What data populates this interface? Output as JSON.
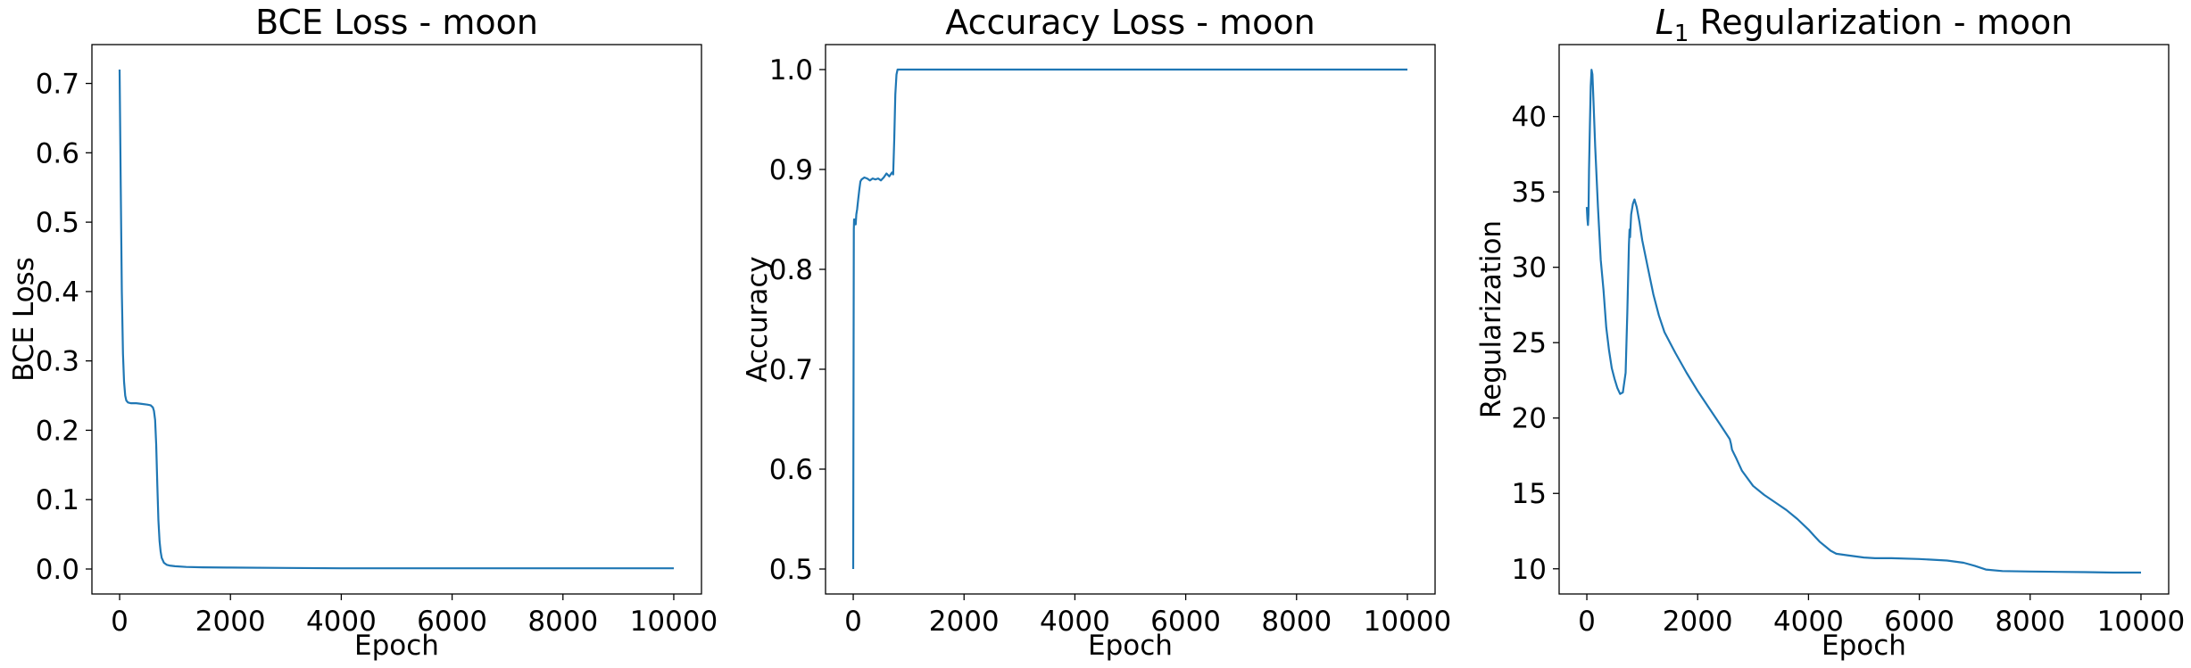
{
  "chart_data": [
    {
      "type": "line",
      "title": "BCE Loss - moon",
      "xlabel": "Epoch",
      "ylabel": "BCE Loss",
      "xlim": [
        -500,
        10500
      ],
      "ylim": [
        -0.036,
        0.756
      ],
      "xticks": [
        0,
        2000,
        4000,
        6000,
        8000,
        10000
      ],
      "xtick_labels": [
        "0",
        "2000",
        "4000",
        "6000",
        "8000",
        "10000"
      ],
      "yticks": [
        0.0,
        0.1,
        0.2,
        0.3,
        0.4,
        0.5,
        0.6,
        0.7
      ],
      "ytick_labels": [
        "0.0",
        "0.1",
        "0.2",
        "0.3",
        "0.4",
        "0.5",
        "0.6",
        "0.7"
      ],
      "grid": false,
      "color": "#1f77b4",
      "series": [
        {
          "x": [
            0,
            20,
            40,
            60,
            80,
            100,
            120,
            150,
            200,
            300,
            400,
            500,
            560,
            600,
            620,
            640,
            660,
            680,
            700,
            720,
            740,
            760,
            800,
            850,
            900,
            1000,
            1200,
            1500,
            2000,
            3000,
            4000,
            5000,
            6000,
            7000,
            8000,
            9000,
            10000
          ],
          "y": [
            0.72,
            0.55,
            0.4,
            0.31,
            0.27,
            0.25,
            0.243,
            0.24,
            0.239,
            0.239,
            0.238,
            0.237,
            0.236,
            0.233,
            0.228,
            0.215,
            0.18,
            0.12,
            0.07,
            0.04,
            0.025,
            0.016,
            0.009,
            0.006,
            0.005,
            0.004,
            0.003,
            0.0025,
            0.002,
            0.0015,
            0.001,
            0.001,
            0.001,
            0.001,
            0.001,
            0.001,
            0.001
          ]
        }
      ]
    },
    {
      "type": "line",
      "title": "Accuracy Loss - moon",
      "xlabel": "Epoch",
      "ylabel": "Accuracy",
      "xlim": [
        -500,
        10500
      ],
      "ylim": [
        0.475,
        1.025
      ],
      "xticks": [
        0,
        2000,
        4000,
        6000,
        8000,
        10000
      ],
      "xtick_labels": [
        "0",
        "2000",
        "4000",
        "6000",
        "8000",
        "10000"
      ],
      "yticks": [
        0.5,
        0.6,
        0.7,
        0.8,
        0.9,
        1.0
      ],
      "ytick_labels": [
        "0.5",
        "0.6",
        "0.7",
        "0.8",
        "0.9",
        "1.0"
      ],
      "grid": false,
      "color": "#1f77b4",
      "series": [
        {
          "x": [
            0,
            5,
            10,
            15,
            25,
            35,
            45,
            55,
            70,
            90,
            110,
            130,
            150,
            200,
            250,
            300,
            350,
            400,
            450,
            500,
            550,
            600,
            650,
            700,
            720,
            740,
            760,
            780,
            800,
            850,
            1000,
            2000,
            4000,
            6000,
            8000,
            10000
          ],
          "y": [
            0.5,
            0.7,
            0.84,
            0.85,
            0.845,
            0.85,
            0.845,
            0.855,
            0.86,
            0.87,
            0.88,
            0.888,
            0.89,
            0.892,
            0.891,
            0.889,
            0.891,
            0.89,
            0.891,
            0.889,
            0.892,
            0.896,
            0.893,
            0.897,
            0.895,
            0.93,
            0.975,
            0.995,
            1.0,
            1.0,
            1.0,
            1.0,
            1.0,
            1.0,
            1.0,
            1.0
          ]
        }
      ]
    },
    {
      "type": "line",
      "title": "$L_1$ Regularization - moon",
      "title_parts": {
        "symbol": "L",
        "subscript": "1",
        "rest": " Regularization - moon"
      },
      "xlabel": "Epoch",
      "ylabel": "Regularization",
      "xlim": [
        -500,
        10500
      ],
      "ylim": [
        8.33,
        44.77
      ],
      "xticks": [
        0,
        2000,
        4000,
        6000,
        8000,
        10000
      ],
      "xtick_labels": [
        "0",
        "2000",
        "4000",
        "6000",
        "8000",
        "10000"
      ],
      "yticks": [
        10,
        15,
        20,
        25,
        30,
        35,
        40
      ],
      "ytick_labels": [
        "10",
        "15",
        "20",
        "25",
        "30",
        "35",
        "40"
      ],
      "grid": false,
      "color": "#1f77b4",
      "series": [
        {
          "x": [
            0,
            10,
            20,
            30,
            40,
            55,
            70,
            85,
            100,
            120,
            150,
            200,
            250,
            300,
            350,
            400,
            450,
            500,
            550,
            600,
            650,
            700,
            730,
            760,
            770,
            780,
            790,
            800,
            830,
            860,
            900,
            950,
            1000,
            1100,
            1200,
            1300,
            1400,
            1500,
            1600,
            1800,
            2000,
            2200,
            2400,
            2580,
            2600,
            2620,
            2700,
            2800,
            3000,
            3200,
            3400,
            3600,
            3800,
            4000,
            4100,
            4200,
            4300,
            4400,
            4500,
            4700,
            5000,
            5200,
            5500,
            6000,
            6500,
            6800,
            7000,
            7200,
            7500,
            8000,
            8500,
            9000,
            9500,
            10000
          ],
          "y": [
            34.0,
            33.2,
            32.8,
            33.5,
            36.5,
            39.5,
            42.0,
            43.1,
            42.8,
            41.0,
            38.0,
            34.0,
            30.5,
            28.5,
            26.0,
            24.5,
            23.3,
            22.6,
            22.0,
            21.6,
            21.7,
            23.0,
            27.0,
            31.5,
            32.5,
            32.0,
            32.8,
            33.5,
            34.2,
            34.5,
            34.0,
            33.0,
            31.8,
            30.0,
            28.2,
            26.8,
            25.7,
            25.0,
            24.3,
            23.0,
            21.8,
            20.7,
            19.6,
            18.6,
            18.3,
            17.9,
            17.3,
            16.5,
            15.5,
            14.9,
            14.4,
            13.9,
            13.3,
            12.6,
            12.2,
            11.8,
            11.5,
            11.2,
            11.0,
            10.9,
            10.75,
            10.7,
            10.7,
            10.65,
            10.55,
            10.4,
            10.2,
            9.95,
            9.85,
            9.82,
            9.8,
            9.78,
            9.75,
            9.75
          ]
        }
      ]
    }
  ]
}
